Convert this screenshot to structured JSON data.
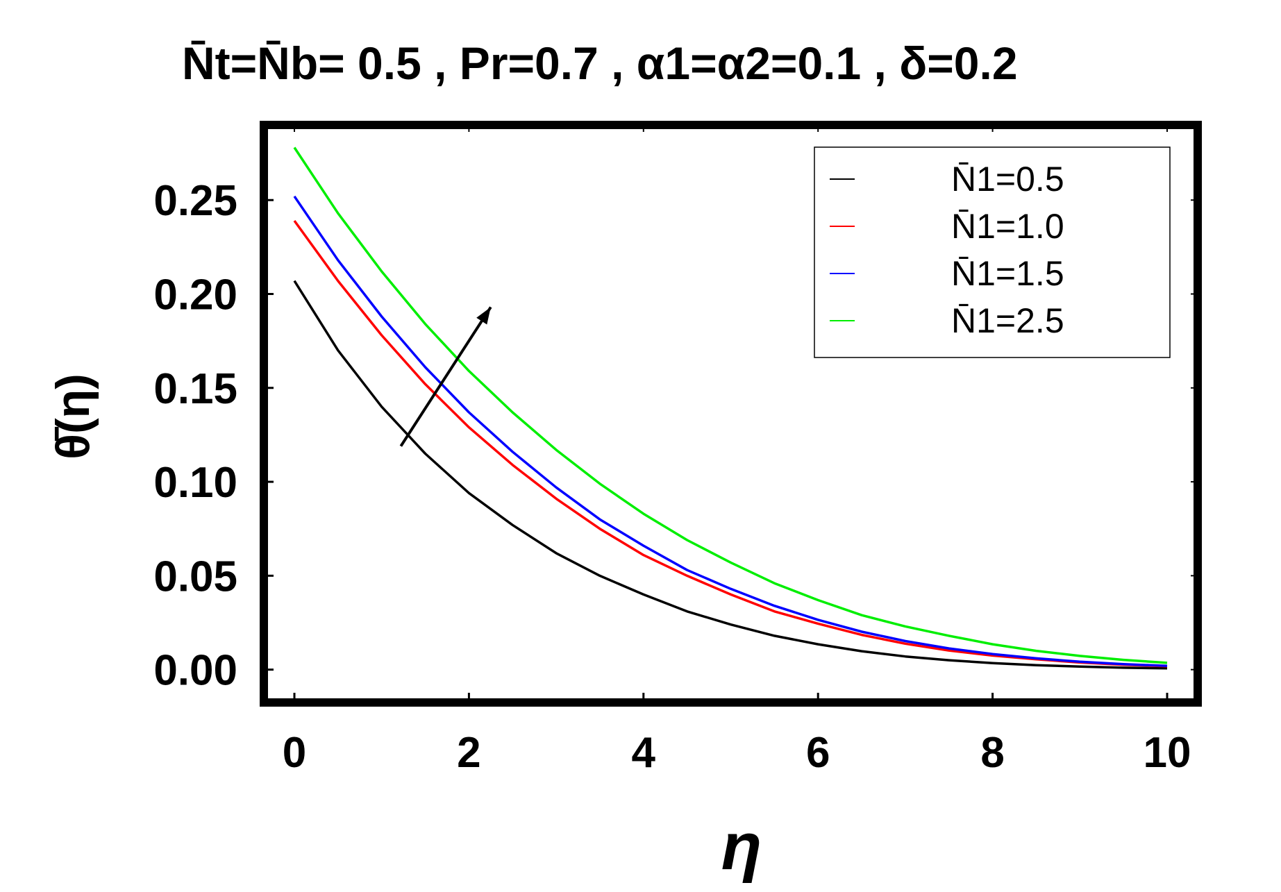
{
  "chart_data": {
    "type": "line",
    "title": "N̄t=N̄b= 0.5 , Pr=0.7 , α1=α2=0.1 , δ=0.2",
    "xlabel": "η",
    "ylabel": "θ̄(η)",
    "xlim": [
      -0.35,
      10.35
    ],
    "ylim": [
      -0.0175,
      0.29
    ],
    "xticks": [
      0,
      2,
      4,
      6,
      8,
      10
    ],
    "xtick_labels": [
      "0",
      "2",
      "4",
      "6",
      "8",
      "10"
    ],
    "yticks": [
      0.0,
      0.05,
      0.1,
      0.15,
      0.2,
      0.25
    ],
    "ytick_labels": [
      "0.00",
      "0.05",
      "0.10",
      "0.15",
      "0.20",
      "0.25"
    ],
    "grid": false,
    "legend_position": "top-right",
    "x": [
      0,
      0.5,
      1,
      1.5,
      2,
      2.5,
      3,
      3.5,
      4,
      4.5,
      5,
      5.5,
      6,
      6.5,
      7,
      7.5,
      8,
      8.5,
      9,
      9.5,
      10
    ],
    "series": [
      {
        "name": "N̄1=0.5",
        "color": "#000000",
        "values": [
          0.207,
          0.17,
          0.14,
          0.115,
          0.094,
          0.077,
          0.062,
          0.05,
          0.04,
          0.031,
          0.024,
          0.018,
          0.0135,
          0.0098,
          0.007,
          0.005,
          0.0035,
          0.0024,
          0.0016,
          0.001,
          0.0007
        ]
      },
      {
        "name": "N̄1=1.0",
        "color": "#ff0000",
        "values": [
          0.239,
          0.207,
          0.178,
          0.152,
          0.129,
          0.109,
          0.091,
          0.075,
          0.061,
          0.05,
          0.04,
          0.031,
          0.0245,
          0.0185,
          0.0138,
          0.0102,
          0.0075,
          0.0055,
          0.0038,
          0.0026,
          0.0018
        ]
      },
      {
        "name": "N̄1=1.5",
        "color": "#0000ff",
        "values": [
          0.252,
          0.218,
          0.188,
          0.161,
          0.137,
          0.116,
          0.097,
          0.08,
          0.066,
          0.053,
          0.043,
          0.034,
          0.0265,
          0.0202,
          0.0152,
          0.0113,
          0.0083,
          0.006,
          0.0042,
          0.0029,
          0.002
        ]
      },
      {
        "name": "N̄1=2.5",
        "color": "#00ee00",
        "values": [
          0.278,
          0.243,
          0.212,
          0.184,
          0.159,
          0.137,
          0.117,
          0.099,
          0.083,
          0.069,
          0.057,
          0.046,
          0.037,
          0.029,
          0.023,
          0.018,
          0.0135,
          0.01,
          0.0073,
          0.0052,
          0.0036
        ]
      }
    ],
    "annotations": [
      {
        "type": "arrow",
        "from": [
          1.22,
          0.119
        ],
        "to": [
          2.25,
          0.193
        ],
        "color": "#000000"
      }
    ]
  }
}
